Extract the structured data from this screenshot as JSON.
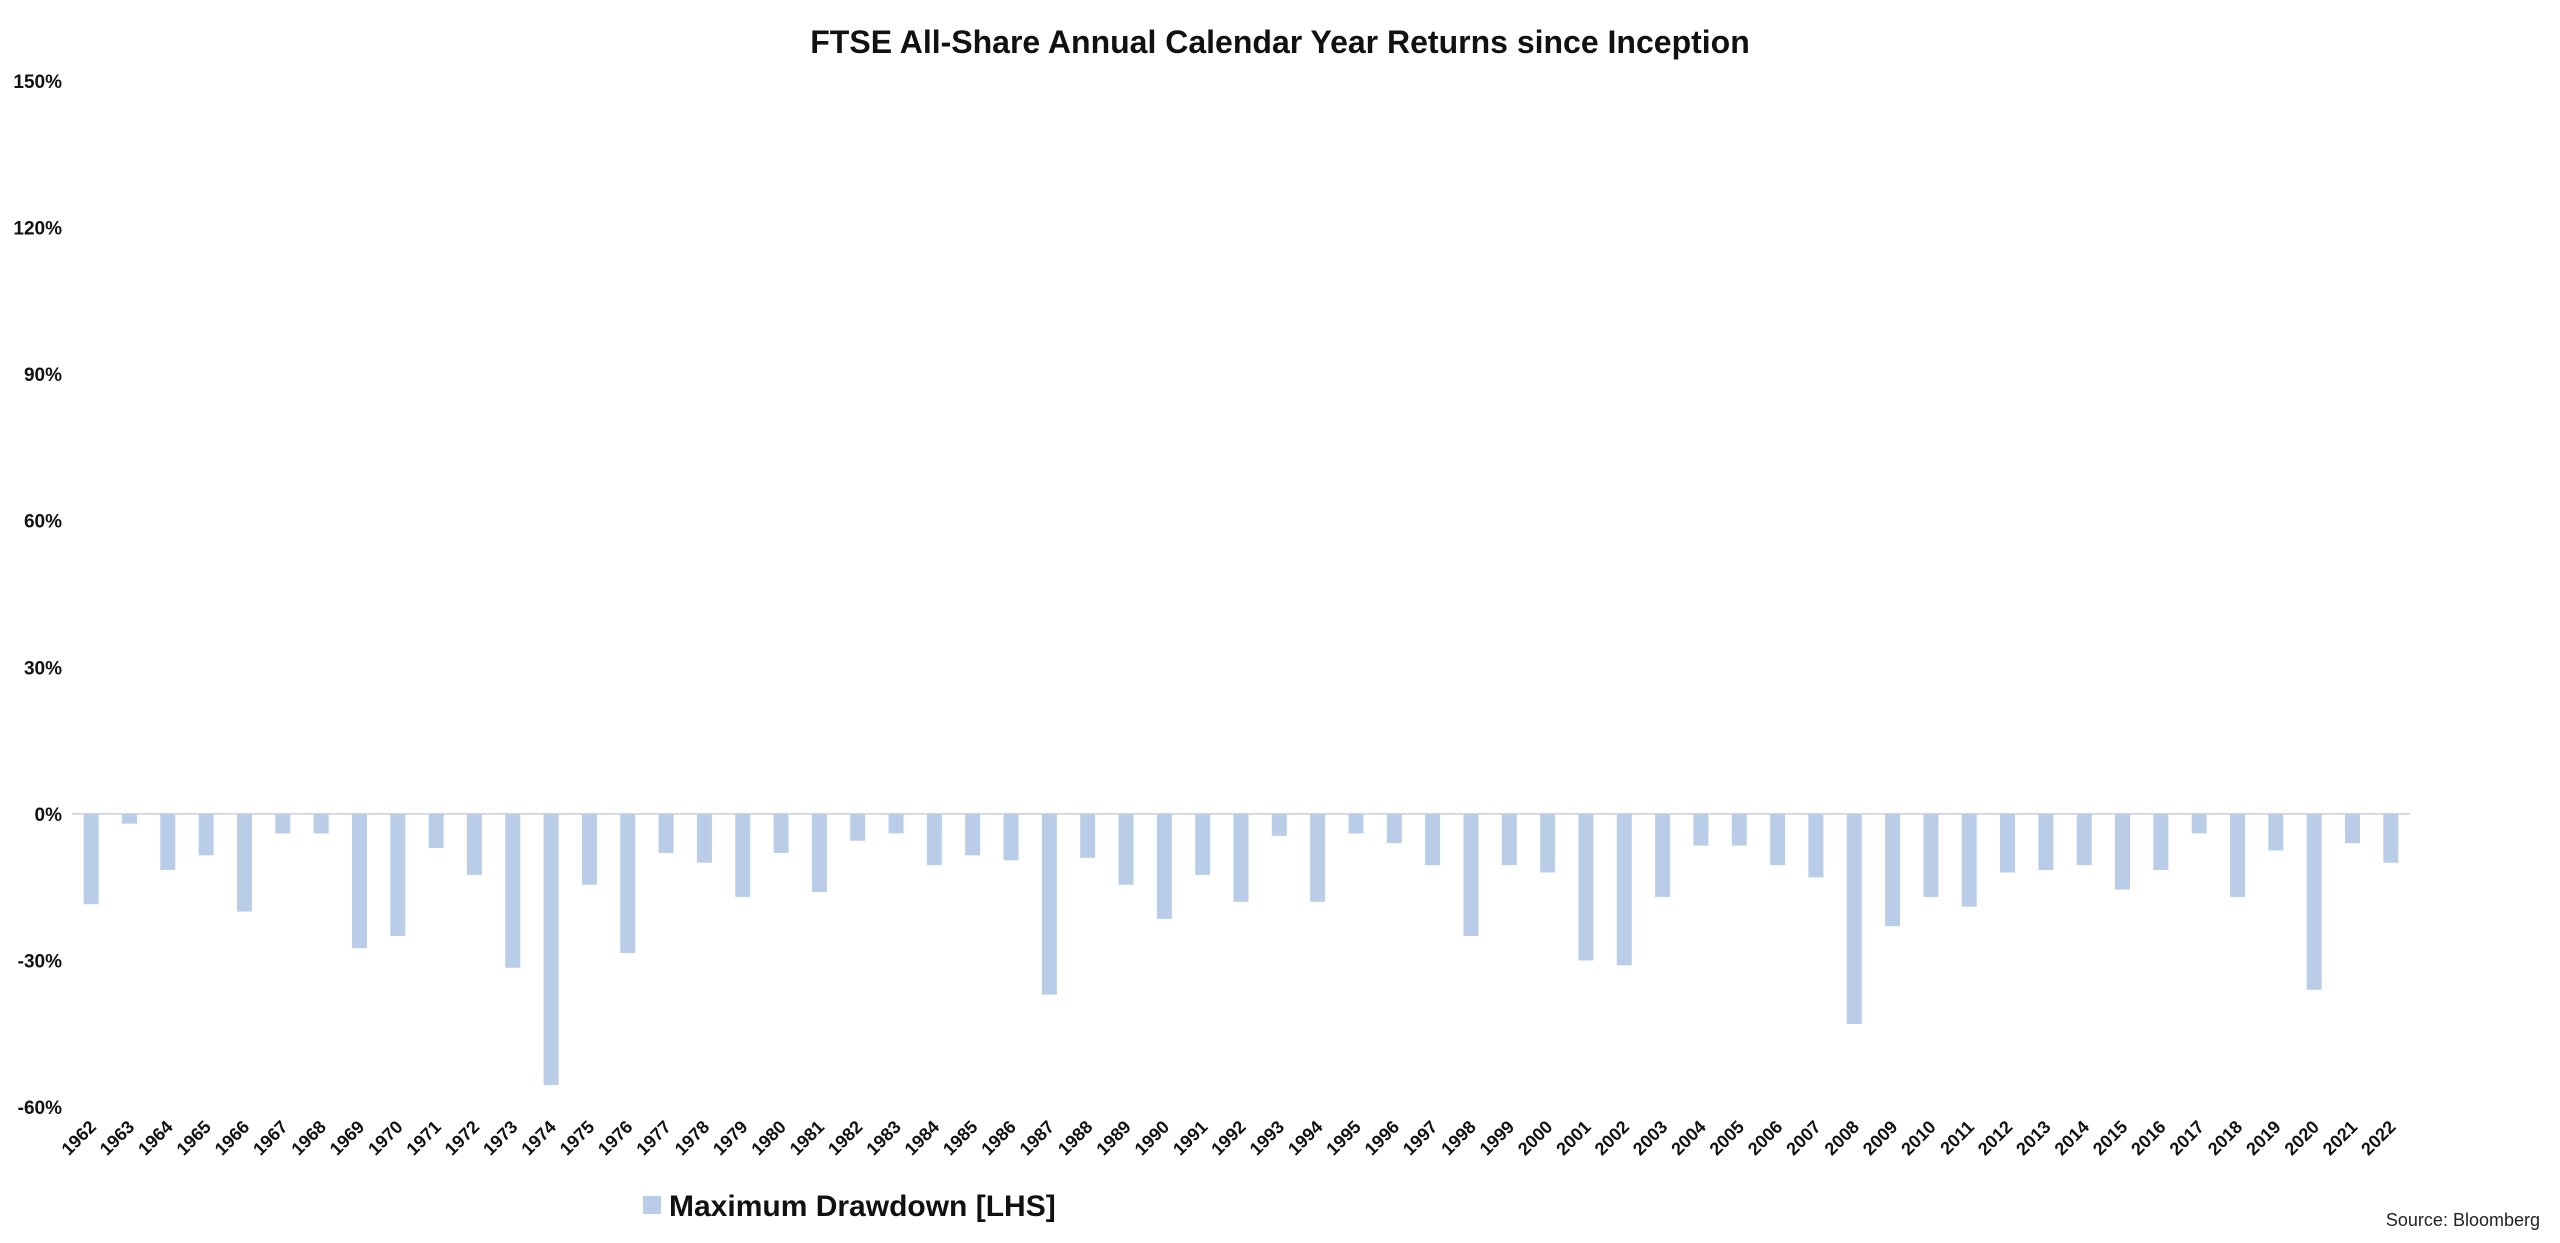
{
  "chart_data": {
    "type": "bar",
    "title": "FTSE All-Share Annual Calendar Year Returns since Inception",
    "xlabel": "",
    "ylabel": "",
    "ylim": [
      -60,
      150
    ],
    "y_ticks": [
      "150%",
      "120%",
      "90%",
      "60%",
      "30%",
      "0%",
      "-30%",
      "-60%"
    ],
    "y_tick_values": [
      150,
      120,
      90,
      60,
      30,
      0,
      -30,
      -60
    ],
    "grid": false,
    "legend_position": "bottom-left",
    "categories": [
      "1962",
      "1963",
      "1964",
      "1965",
      "1966",
      "1967",
      "1968",
      "1969",
      "1970",
      "1971",
      "1972",
      "1973",
      "1974",
      "1975",
      "1976",
      "1977",
      "1978",
      "1979",
      "1980",
      "1981",
      "1982",
      "1983",
      "1984",
      "1985",
      "1986",
      "1987",
      "1988",
      "1989",
      "1990",
      "1991",
      "1992",
      "1993",
      "1994",
      "1995",
      "1996",
      "1997",
      "1998",
      "1999",
      "2000",
      "2001",
      "2002",
      "2003",
      "2004",
      "2005",
      "2006",
      "2007",
      "2008",
      "2009",
      "2010",
      "2011",
      "2012",
      "2013",
      "2014",
      "2015",
      "2016",
      "2017",
      "2018",
      "2019",
      "2020",
      "2021",
      "2022"
    ],
    "series": [
      {
        "name": "Maximum Drawdown [LHS]",
        "color": "#b9cde9",
        "values": [
          -18.5,
          -2,
          -11.5,
          -8.5,
          -20,
          -4,
          -4,
          -27.5,
          -25,
          -7,
          -12.5,
          -31.5,
          -55.5,
          -14.5,
          -28.5,
          -8,
          -10,
          -17,
          -8,
          -16,
          -5.5,
          -4,
          -10.5,
          -8.5,
          -9.5,
          -37,
          -9,
          -14.5,
          -21.5,
          -12.5,
          -18,
          -4.5,
          -18,
          -4,
          -6,
          -10.5,
          -25,
          -10.5,
          -12,
          -30,
          -31,
          -17,
          -6.5,
          -6.5,
          -10.5,
          -13,
          -43,
          -23,
          -17,
          -19,
          -12,
          -11.5,
          -10.5,
          -15.5,
          -11.5,
          -4,
          -17,
          -7.5,
          -36,
          -6,
          -10
        ]
      }
    ]
  },
  "source": "Source: Bloomberg"
}
